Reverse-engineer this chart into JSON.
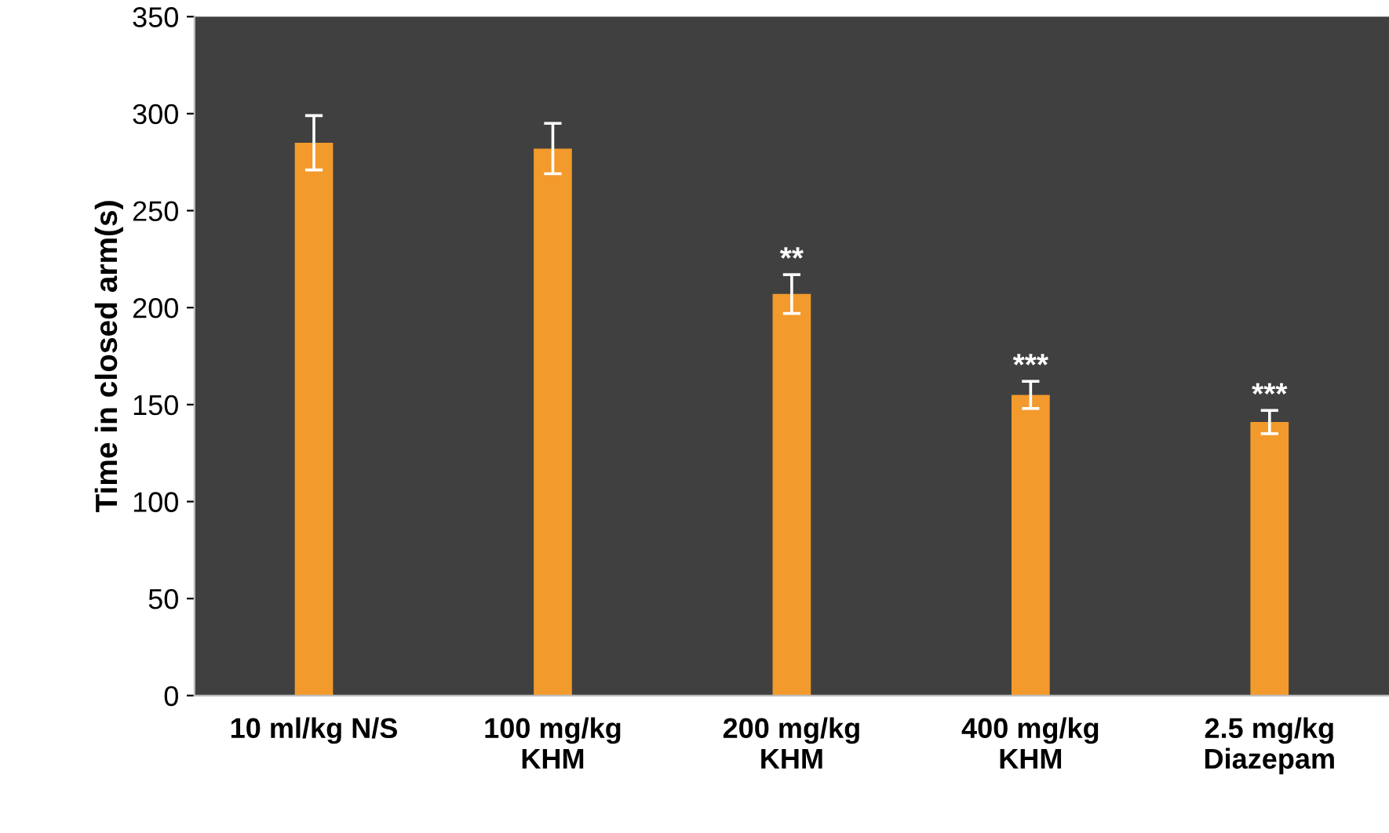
{
  "chart_data": {
    "type": "bar",
    "ylabel": "Time in closed arm(s)",
    "categories": [
      "10 ml/kg N/S",
      "100 mg/kg\nKHM",
      "200 mg/kg\nKHM",
      "400 mg/kg\nKHM",
      "2.5 mg/kg\nDiazepam"
    ],
    "values": [
      285,
      282,
      207,
      155,
      141
    ],
    "errors": [
      14,
      13,
      10,
      7,
      6
    ],
    "color": "#f39a2c",
    "ylim": [
      0,
      350
    ],
    "yticks": [
      0,
      50,
      100,
      150,
      200,
      250,
      300,
      350
    ],
    "grid": false,
    "annotations": [
      {
        "text": "**",
        "x": "200 mg/kg\nKHM",
        "y": 217
      },
      {
        "text": "***",
        "x": "400 mg/kg\nKHM",
        "y": 162
      },
      {
        "text": "***",
        "x": "2.5 mg/kg\nDiazepam",
        "y": 147
      }
    ]
  }
}
